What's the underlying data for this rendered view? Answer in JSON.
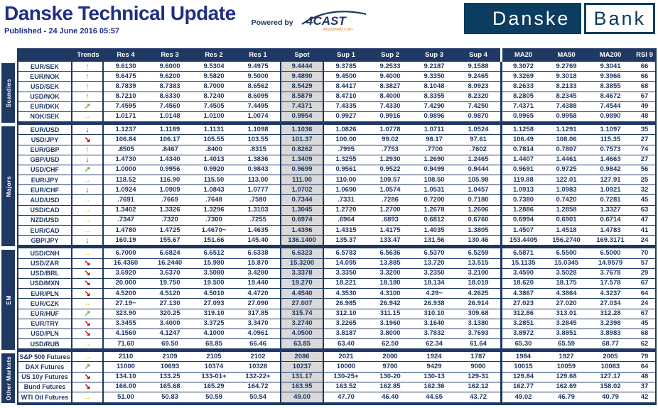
{
  "header": {
    "title": "Danske Technical Update",
    "published": "Published - 24 June 2016 05:57",
    "powered_by": "Powered by",
    "vendor_logo": "4CAST",
    "vendor_tagline": "4castweb.com",
    "bank_logo": {
      "left": "Danske",
      "right": "Bank"
    }
  },
  "theme": {
    "navy": "#1f3864",
    "title_blue": "#1f2f86",
    "logo_navy": "#0c3c5f",
    "spot_bg": "#d9d9d9",
    "tagline_orange": "#e87c1e",
    "trend_colors": {
      "up": "#69b33f",
      "ne": "#69b33f",
      "right": "#ffc000",
      "se": "#c00000",
      "down": "#c00000"
    }
  },
  "trend_glyphs": {
    "up": "↑",
    "ne": "↗",
    "right": "→",
    "se": "↘",
    "down": "↓"
  },
  "table": {
    "columns": [
      "Trends",
      "Res 4",
      "Res 3",
      "Res 2",
      "Res 1",
      "Spot",
      "Sup 1",
      "Sup 2",
      "Sup 3",
      "Sup 4",
      "MA20",
      "MA50",
      "MA200",
      "RSI 9"
    ],
    "groups": [
      {
        "name": "Scandies",
        "rows": [
          {
            "pair": "EUR/SEK",
            "trend": "up",
            "values": [
              "9.6130",
              "9.6000",
              "9.5304",
              "9.4975",
              "9.4444",
              "9.3785",
              "9.2533",
              "9.2187",
              "9.1588",
              "9.3072",
              "9.2769",
              "9.3041"
            ],
            "rsi": "66"
          },
          {
            "pair": "EUR/NOK",
            "trend": "up",
            "values": [
              "9.6475",
              "9.6200",
              "9.5820",
              "9.5000",
              "9.4890",
              "9.4500",
              "9.4000",
              "9.3350",
              "9.2465",
              "9.3269",
              "9.3018",
              "9.3966"
            ],
            "rsi": "66"
          },
          {
            "pair": "USD/SEK",
            "trend": "up",
            "values": [
              "8.7839",
              "8.7383",
              "8.7000",
              "8.6562",
              "8.5429",
              "8.4417",
              "8.3827",
              "8.1048",
              "8.0923",
              "8.2633",
              "8.2133",
              "8.3855"
            ],
            "rsi": "68"
          },
          {
            "pair": "USD/NOK",
            "trend": "up",
            "values": [
              "8.7210",
              "8.6330",
              "8.7240",
              "8.6095",
              "8.5879",
              "8.4710",
              "8.4000",
              "8.3355",
              "8.2320",
              "8.2805",
              "8.2345",
              "8.4672"
            ],
            "rsi": "67"
          },
          {
            "pair": "EUR/DKK",
            "trend": "ne",
            "values": [
              "7.4595",
              "7.4560",
              "7.4505",
              "7.4495",
              "7.4371",
              "7.4335",
              "7.4330",
              "7.4290",
              "7.4250",
              "7.4371",
              "7.4388",
              "7.4544"
            ],
            "rsi": "49"
          },
          {
            "pair": "NOK/SEK",
            "trend": "right",
            "values": [
              "1.0171",
              "1.0148",
              "1.0100",
              "1.0074",
              "0.9954",
              "0.9927",
              "0.9916",
              "0.9896",
              "0.9870",
              "0.9965",
              "0.9958",
              "0.9890"
            ],
            "rsi": "48"
          }
        ]
      },
      {
        "name": "Majors",
        "rows": [
          {
            "pair": "EUR/USD",
            "trend": "down",
            "values": [
              "1.1237",
              "1.1189",
              "1.1131",
              "1.1098",
              "1.1036",
              "1.0826",
              "1.0778",
              "1.0711",
              "1.0524",
              "1.1258",
              "1.1291",
              "1.1097"
            ],
            "rsi": "35"
          },
          {
            "pair": "USD/JPY",
            "trend": "se",
            "values": [
              "106.84",
              "106.17",
              "105.55",
              "103.55",
              "101.37",
              "100.00",
              "99.02",
              "98.17",
              "97.61",
              "106.49",
              "108.06",
              "115.35"
            ],
            "rsi": "27"
          },
          {
            "pair": "EUR/GBP",
            "trend": "up",
            "values": [
              ".8505",
              ".8467",
              ".8400",
              ".8315",
              "0.8262",
              ".7995",
              ".7753",
              ".7700",
              ".7602",
              "0.7814",
              "0.7807",
              "0.7573"
            ],
            "rsi": "74"
          },
          {
            "pair": "GBP/USD",
            "trend": "down",
            "values": [
              "1.4730",
              "1.4340",
              "1.4013",
              "1.3836",
              "1.3409",
              "1.3255",
              "1.2930",
              "1.2690",
              "1.2465",
              "1.4407",
              "1.4461",
              "1.4663"
            ],
            "rsi": "27"
          },
          {
            "pair": "USD/CHF",
            "trend": "ne",
            "values": [
              "1.0000",
              "0.9956",
              "0.9920",
              "0.9843",
              "0.9699",
              "0.9561",
              "0.9522",
              "0.9499",
              "0.9444",
              "0.9691",
              "0.9725",
              "0.9842"
            ],
            "rsi": "56"
          },
          {
            "pair": "EUR/JPY",
            "trend": "right",
            "values": [
              "118.52",
              "116.90",
              "115.50",
              "113.00",
              "111.00",
              "110.00",
              "109.57",
              "108.50",
              "105.98",
              "119.88",
              "122.01",
              "127.91"
            ],
            "rsi": "25"
          },
          {
            "pair": "EUR/CHF",
            "trend": "down",
            "values": [
              "1.0924",
              "1.0909",
              "1.0843",
              "1.0777",
              "1.0702",
              "1.0690",
              "1.0574",
              "1.0531",
              "1.0457",
              "1.0913",
              "1.0983",
              "1.0921"
            ],
            "rsi": "32"
          },
          {
            "pair": "AUD/USD",
            "trend": "right",
            "values": [
              ".7691",
              ".7669",
              ".7648",
              ".7580",
              "0.7344",
              ".7331",
              ".7286",
              "0.7200",
              "0.7180",
              "0.7380",
              "0.7420",
              "0.7281"
            ],
            "rsi": "45"
          },
          {
            "pair": "USD/CAD",
            "trend": "right",
            "values": [
              "1.3402",
              "1.3326",
              "1.3296",
              "1.3103",
              "1.3045",
              "1.2720",
              "1.2700",
              "1.2678",
              "1.2606",
              "1.2886",
              "1.2858",
              "1.3327"
            ],
            "rsi": "63"
          },
          {
            "pair": "NZD/USD",
            "trend": "right",
            "values": [
              ".7347",
              ".7320",
              ".7300",
              ".7255",
              "0.6974",
              ".6964",
              ".6893",
              "0.6812",
              "0.6760",
              "0.6994",
              "0.6901",
              "0.6714"
            ],
            "rsi": "47"
          },
          {
            "pair": "EUR/CAD",
            "trend": "right",
            "values": [
              "1.4780",
              "1.4725",
              "1.4670~",
              "1.4635",
              "1.4396",
              "1.4315",
              "1.4175",
              "1.4035",
              "1.3805",
              "1.4507",
              "1.4518",
              "1.4783"
            ],
            "rsi": "41"
          },
          {
            "pair": "GBP/JPY",
            "trend": "down",
            "values": [
              "160.19",
              "155.67",
              "151.66",
              "145.40",
              "136.1400",
              "135.37",
              "133.47",
              "131.56",
              "130.46",
              "153.4405",
              "156.2740",
              "169.3171"
            ],
            "rsi": "24"
          }
        ]
      },
      {
        "name": "EM",
        "rows": [
          {
            "pair": "USD/CNH",
            "trend": "right",
            "values": [
              "6.7000",
              "6.6824",
              "6.6512",
              "6.6338",
              "6.6323",
              "6.5783",
              "6.5636",
              "6.5370",
              "6.5259",
              "6.5871",
              "6.5500",
              "6.5000"
            ],
            "rsi": "70"
          },
          {
            "pair": "USD/ZAR",
            "trend": "se",
            "values": [
              "16.4360",
              "16.2440",
              "15.980",
              "15.870",
              "15.3200",
              "14.095",
              "13.885",
              "13.720",
              "13.515",
              "15.1135",
              "15.0345",
              "14.9579"
            ],
            "rsi": "57"
          },
          {
            "pair": "USD/BRL",
            "trend": "se",
            "values": [
              "3.6920",
              "3.6370",
              "3.5080",
              "3.4280",
              "3.3378",
              "3.3350",
              "3.3200",
              "3.2350",
              "3.2100",
              "3.4590",
              "3.5028",
              "3.7678"
            ],
            "rsi": "29"
          },
          {
            "pair": "USD/MXN",
            "trend": "se",
            "values": [
              "20.000",
              "19.750",
              "19.500",
              "19.440",
              "19.270",
              "18.221",
              "18.180",
              "18.134",
              "18.019",
              "18.620",
              "18.175",
              "17.578"
            ],
            "rsi": "67"
          },
          {
            "pair": "EUR/PLN",
            "trend": "se",
            "values": [
              "4.5200",
              "4.5120",
              "4.5010",
              "4.4720",
              "4.4540",
              "4.3530",
              "4.3100",
              "4.29~",
              "4.2625",
              "4.3867",
              "4.3864",
              "4.3237"
            ],
            "rsi": "64"
          },
          {
            "pair": "EUR/CZK",
            "trend": "right",
            "values": [
              "27.19~",
              "27.130",
              "27.093",
              "27.090",
              "27.007",
              "26.985",
              "26.942",
              "26.938",
              "26.914",
              "27.023",
              "27.020",
              "27.034"
            ],
            "rsi": "24"
          },
          {
            "pair": "EUR/HUF",
            "trend": "ne",
            "values": [
              "323.90",
              "320.25",
              "319.10",
              "317.85",
              "315.74",
              "312.10",
              "311.15",
              "310.10",
              "309.68",
              "312.86",
              "313.01",
              "312.28"
            ],
            "rsi": "67"
          },
          {
            "pair": "EUR/TRY",
            "trend": "se",
            "values": [
              "3.3455",
              "3.4000",
              "3.3725",
              "3.3470",
              "3.2740",
              "3.2265",
              "3.1960",
              "3.1640",
              "3.1380",
              "3.2851",
              "3.2845",
              "3.2398"
            ],
            "rsi": "45"
          },
          {
            "pair": "USD/PLN",
            "trend": "se",
            "values": [
              "4.1560",
              "4.1247",
              "4.1000",
              "4.0961",
              "4.0500",
              "3.8187",
              "3.8000",
              "3.7832",
              "3.7693",
              "3.8972",
              "3.8851",
              "3.8983"
            ],
            "rsi": "68"
          },
          {
            "pair": "USD/RUB",
            "trend": "right",
            "values": [
              "71.60",
              "69.50",
              "68.85",
              "66.46",
              "63.85",
              "63.40",
              "62.50",
              "62.34",
              "61.64",
              "65.30",
              "65.59",
              "68.77"
            ],
            "rsi": "62"
          }
        ]
      },
      {
        "name": "Other Markets",
        "rows": [
          {
            "pair": "S&P 500 Futures",
            "trend": "right",
            "values": [
              "2110",
              "2109",
              "2105",
              "2102",
              "2086",
              "2021",
              "2000",
              "1924",
              "1787",
              "1984",
              "1927",
              "2005"
            ],
            "rsi": "79"
          },
          {
            "pair": "DAX Futures",
            "trend": "ne",
            "values": [
              "11000",
              "10693",
              "10374",
              "10328",
              "10237",
              "10000",
              "9700",
              "9429",
              "9000",
              "10015",
              "10059",
              "10083"
            ],
            "rsi": "64"
          },
          {
            "pair": "US 10y Futures",
            "trend": "se",
            "values": [
              "134.10",
              "133.25",
              "133-01+",
              "132-22+",
              "131.17",
              "130-25+",
              "130-20",
              "130-13",
              "129-31",
              "129.84",
              "129.68",
              "127.17"
            ],
            "rsi": "48"
          },
          {
            "pair": "Bund Futures",
            "trend": "se",
            "values": [
              "166.00",
              "165.68",
              "165.29",
              "164.72",
              "163.95",
              "163.52",
              "162.85",
              "162.36",
              "162.12",
              "162.77",
              "162.69",
              "158.02"
            ],
            "rsi": "37"
          },
          {
            "pair": "WTI Oil Futures",
            "trend": "right",
            "values": [
              "51.00",
              "50.83",
              "50.59",
              "50.54",
              "49.00",
              "47.70",
              "46.40",
              "44.65",
              "43.72",
              "49.02",
              "46.79",
              "40.79"
            ],
            "rsi": "42"
          }
        ]
      }
    ]
  }
}
